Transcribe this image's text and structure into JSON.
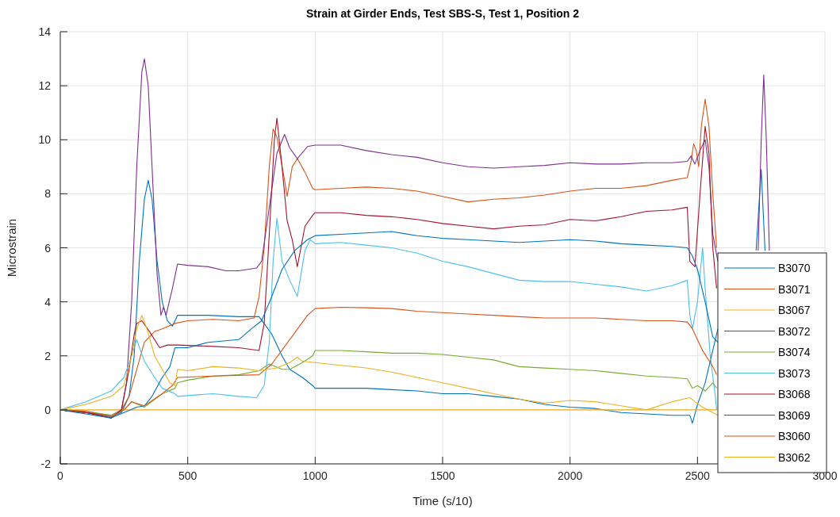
{
  "chart_data": {
    "type": "line",
    "title": "Strain at Girder Ends, Test SBS-S, Test 1, Position 2",
    "xlabel": "Time (s/10)",
    "ylabel": "Microstrain",
    "xlim": [
      0,
      3000
    ],
    "xticks": [
      0,
      500,
      1000,
      1500,
      2000,
      2500,
      3000
    ],
    "ylim": [
      -2,
      14
    ],
    "yticks": [
      -2,
      0,
      2,
      4,
      6,
      8,
      10,
      12,
      14
    ],
    "grid": true,
    "legend": "bottom right",
    "line_style": "solid",
    "marker": "none",
    "series": [
      {
        "name": "B3070",
        "color": "#0072bd",
        "x": [
          0,
          100,
          200,
          240,
          270,
          290,
          310,
          330,
          345,
          360,
          380,
          400,
          420,
          440,
          460,
          500,
          580,
          700,
          780,
          830,
          870,
          900,
          950,
          990,
          1000,
          1100,
          1200,
          1300,
          1400,
          1500,
          1600,
          1700,
          1800,
          1900,
          2000,
          2100,
          2200,
          2300,
          2400,
          2470,
          2480,
          2500,
          2530,
          2560,
          2580,
          2650,
          2730,
          2750,
          2765
        ],
        "values": [
          0,
          -0.1,
          -0.25,
          -0.1,
          0.5,
          2,
          5.5,
          7.8,
          8.5,
          7.8,
          5.5,
          4,
          3.3,
          3.1,
          3.5,
          3.5,
          3.5,
          3.45,
          3.45,
          2.8,
          2,
          1.5,
          1.2,
          0.9,
          0.8,
          0.8,
          0.8,
          0.75,
          0.7,
          0.6,
          0.6,
          0.5,
          0.4,
          0.2,
          0.1,
          0.05,
          -0.1,
          -0.15,
          -0.2,
          -0.2,
          -0.5,
          0.2,
          1,
          2.2,
          3.0,
          null,
          5.9,
          8.9,
          5.9
        ]
      },
      {
        "name": "B3071",
        "color": "#d95319",
        "x": [
          0,
          100,
          200,
          240,
          270,
          300,
          330,
          370,
          400,
          450,
          500,
          600,
          700,
          760,
          780,
          800,
          820,
          835,
          850,
          880,
          890,
          910,
          930,
          960,
          990,
          1000,
          1100,
          1200,
          1300,
          1400,
          1500,
          1600,
          1700,
          1800,
          1900,
          2000,
          2100,
          2200,
          2300,
          2400,
          2460,
          2475,
          2485,
          2495,
          2505,
          2515,
          2530,
          2545,
          2560,
          2575
        ],
        "values": [
          0,
          -0.1,
          -0.3,
          0,
          0.5,
          1.5,
          2.5,
          2.9,
          3.0,
          3.2,
          3.3,
          3.35,
          3.3,
          3.4,
          4.2,
          6,
          9,
          10.4,
          10.1,
          8.5,
          7.9,
          9,
          9.3,
          8.8,
          8.2,
          8.15,
          8.2,
          8.25,
          8.2,
          8.1,
          7.9,
          7.7,
          7.8,
          7.85,
          7.95,
          8.1,
          8.2,
          8.2,
          8.3,
          8.5,
          8.6,
          9.2,
          9.85,
          9.6,
          9,
          10.5,
          11.5,
          10.5,
          8,
          6
        ]
      },
      {
        "name": "B3067",
        "color": "#edb120",
        "x": [
          0,
          2575
        ],
        "values": [
          0,
          0
        ]
      },
      {
        "name": "B3072",
        "color": "#7e2f8e",
        "x": [
          0,
          100,
          200,
          240,
          260,
          280,
          300,
          320,
          330,
          345,
          360,
          380,
          395,
          405,
          415,
          440,
          460,
          500,
          580,
          650,
          700,
          770,
          790,
          820,
          850,
          880,
          900,
          930,
          970,
          1000,
          1100,
          1200,
          1300,
          1400,
          1500,
          1600,
          1700,
          1800,
          1900,
          2000,
          2100,
          2200,
          2300,
          2400,
          2460,
          2475,
          2490,
          2510,
          2530,
          2545,
          2560,
          2580,
          2650,
          2738,
          2750,
          2760,
          2770,
          2782
        ],
        "values": [
          0,
          -0.1,
          -0.2,
          0,
          1,
          4,
          9,
          12.5,
          13,
          12,
          9,
          5,
          3.5,
          3.8,
          3.5,
          4.5,
          5.4,
          5.35,
          5.3,
          5.15,
          5.15,
          5.25,
          5.5,
          7.5,
          9.5,
          10.2,
          9.7,
          9.3,
          9.75,
          9.8,
          9.8,
          9.6,
          9.45,
          9.35,
          9.15,
          9.0,
          8.95,
          9.0,
          9.05,
          9.15,
          9.1,
          9.1,
          9.15,
          9.15,
          9.2,
          9.4,
          9.1,
          9.6,
          10,
          9,
          6.5,
          5.5,
          null,
          5.9,
          10,
          12.4,
          10,
          5.9
        ]
      },
      {
        "name": "B3074",
        "color": "#77ac30",
        "x": [
          0,
          100,
          200,
          250,
          280,
          330,
          400,
          450,
          460,
          500,
          600,
          700,
          780,
          820,
          870,
          900,
          950,
          990,
          1000,
          1100,
          1200,
          1300,
          1400,
          1500,
          1600,
          1700,
          1800,
          1900,
          2000,
          2100,
          2200,
          2300,
          2400,
          2460,
          2480,
          2500,
          2530,
          2560,
          2575
        ],
        "values": [
          0,
          -0.05,
          -0.2,
          0,
          0.3,
          0.1,
          0.6,
          0.8,
          1.0,
          1.1,
          1.25,
          1.3,
          1.45,
          1.7,
          1.5,
          1.5,
          1.75,
          2.0,
          2.2,
          2.2,
          2.15,
          2.1,
          2.1,
          2.05,
          1.95,
          1.85,
          1.6,
          1.55,
          1.5,
          1.45,
          1.35,
          1.25,
          1.2,
          1.15,
          0.8,
          0.9,
          0.7,
          1.0,
          0.8
        ]
      },
      {
        "name": "B3073",
        "color": "#4dbeee",
        "x": [
          0,
          100,
          200,
          250,
          280,
          300,
          330,
          370,
          400,
          450,
          460,
          600,
          700,
          770,
          800,
          820,
          835,
          850,
          870,
          900,
          930,
          960,
          980,
          1000,
          1100,
          1200,
          1300,
          1400,
          1500,
          1600,
          1700,
          1800,
          1900,
          2000,
          2100,
          2200,
          2300,
          2400,
          2460,
          2470,
          2480,
          2500,
          2520,
          2530,
          2550,
          2570,
          2575
        ],
        "values": [
          0,
          0.3,
          0.7,
          1.2,
          2.0,
          2.6,
          1.8,
          1.2,
          0.8,
          0.6,
          0.5,
          0.6,
          0.5,
          0.45,
          0.9,
          2.5,
          5.5,
          7.1,
          5.5,
          4.8,
          4.2,
          5.9,
          6.3,
          6.15,
          6.2,
          6.1,
          6.0,
          5.8,
          5.5,
          5.3,
          5.05,
          4.8,
          4.75,
          4.75,
          4.65,
          4.55,
          4.4,
          4.6,
          4.8,
          3.5,
          3.0,
          4,
          6.0,
          4.5,
          2,
          0.5,
          0
        ]
      },
      {
        "name": "B3068",
        "color": "#a2142f",
        "x": [
          0,
          100,
          200,
          240,
          270,
          290,
          300,
          320,
          350,
          390,
          420,
          460,
          600,
          700,
          780,
          800,
          820,
          840,
          850,
          870,
          890,
          910,
          930,
          960,
          990,
          1000,
          1100,
          1200,
          1300,
          1400,
          1500,
          1600,
          1700,
          1800,
          1900,
          2000,
          2100,
          2200,
          2300,
          2400,
          2460,
          2470,
          2490,
          2510,
          2530,
          2545,
          2560,
          2575
        ],
        "values": [
          0,
          -0.1,
          -0.3,
          0,
          1.5,
          2.8,
          3.2,
          3.3,
          2.9,
          2.3,
          2.4,
          2.4,
          2.35,
          2.3,
          2.2,
          3.2,
          6.5,
          10,
          10.8,
          9,
          7,
          6.3,
          5.3,
          6.8,
          7.2,
          7.3,
          7.3,
          7.2,
          7.15,
          7.05,
          6.9,
          6.8,
          6.7,
          6.8,
          6.85,
          7.05,
          7.0,
          7.15,
          7.35,
          7.4,
          7.5,
          5.5,
          5.3,
          8,
          10.5,
          9.5,
          6,
          4.5
        ]
      },
      {
        "name": "B3069",
        "color": "#0072bd",
        "x": [
          0,
          100,
          200,
          250,
          300,
          330,
          360,
          400,
          430,
          450,
          500,
          580,
          700,
          750,
          790,
          830,
          870,
          920,
          970,
          1000,
          1100,
          1200,
          1300,
          1400,
          1500,
          1600,
          1700,
          1800,
          1900,
          2000,
          2100,
          2200,
          2300,
          2400,
          2460,
          2480,
          2500,
          2530,
          2560,
          2580
        ],
        "values": [
          0,
          -0.15,
          -0.3,
          -0.1,
          0.1,
          0.15,
          0.5,
          1.2,
          1.6,
          2.3,
          2.3,
          2.5,
          2.6,
          3,
          3.3,
          4.2,
          5.2,
          5.9,
          6.3,
          6.45,
          6.5,
          6.55,
          6.6,
          6.45,
          6.35,
          6.3,
          6.25,
          6.2,
          6.25,
          6.3,
          6.25,
          6.15,
          6.1,
          6.05,
          6.0,
          5.7,
          5.2,
          4,
          2.7,
          2.5
        ]
      },
      {
        "name": "B3060",
        "color": "#d95319",
        "x": [
          0,
          100,
          200,
          250,
          280,
          330,
          400,
          440,
          460,
          600,
          780,
          830,
          900,
          970,
          1000,
          1100,
          1200,
          1300,
          1400,
          1500,
          1600,
          1700,
          1800,
          1900,
          2000,
          2100,
          2200,
          2300,
          2400,
          2460,
          2480,
          2520,
          2560,
          2575
        ],
        "values": [
          0,
          -0.05,
          -0.25,
          0,
          0.3,
          0.15,
          0.6,
          0.9,
          1.2,
          1.25,
          1.3,
          1.7,
          2.6,
          3.5,
          3.75,
          3.8,
          3.78,
          3.75,
          3.65,
          3.6,
          3.55,
          3.5,
          3.45,
          3.4,
          3.4,
          3.4,
          3.35,
          3.3,
          3.3,
          3.25,
          3.0,
          2.2,
          1.6,
          1.3
        ]
      },
      {
        "name": "B3062",
        "color": "#edb120",
        "x": [
          0,
          100,
          200,
          250,
          280,
          300,
          320,
          340,
          370,
          400,
          430,
          450,
          460,
          500,
          600,
          700,
          780,
          850,
          900,
          930,
          950,
          1000,
          1100,
          1200,
          1300,
          1400,
          1500,
          1600,
          1700,
          1800,
          1900,
          2000,
          2100,
          2200,
          2300,
          2400,
          2470,
          2490,
          2520,
          2550,
          2580
        ],
        "values": [
          0,
          0.2,
          0.5,
          0.9,
          2,
          3.0,
          3.5,
          3.0,
          2.0,
          1.5,
          1.0,
          0.9,
          1.5,
          1.45,
          1.6,
          1.55,
          1.45,
          1.55,
          1.75,
          1.95,
          1.8,
          1.75,
          1.65,
          1.55,
          1.4,
          1.2,
          1.0,
          0.8,
          0.6,
          0.4,
          0.25,
          0.35,
          0.3,
          0.15,
          0,
          0.3,
          0.45,
          0.3,
          0.1,
          -0.05,
          -0.2
        ]
      }
    ]
  }
}
